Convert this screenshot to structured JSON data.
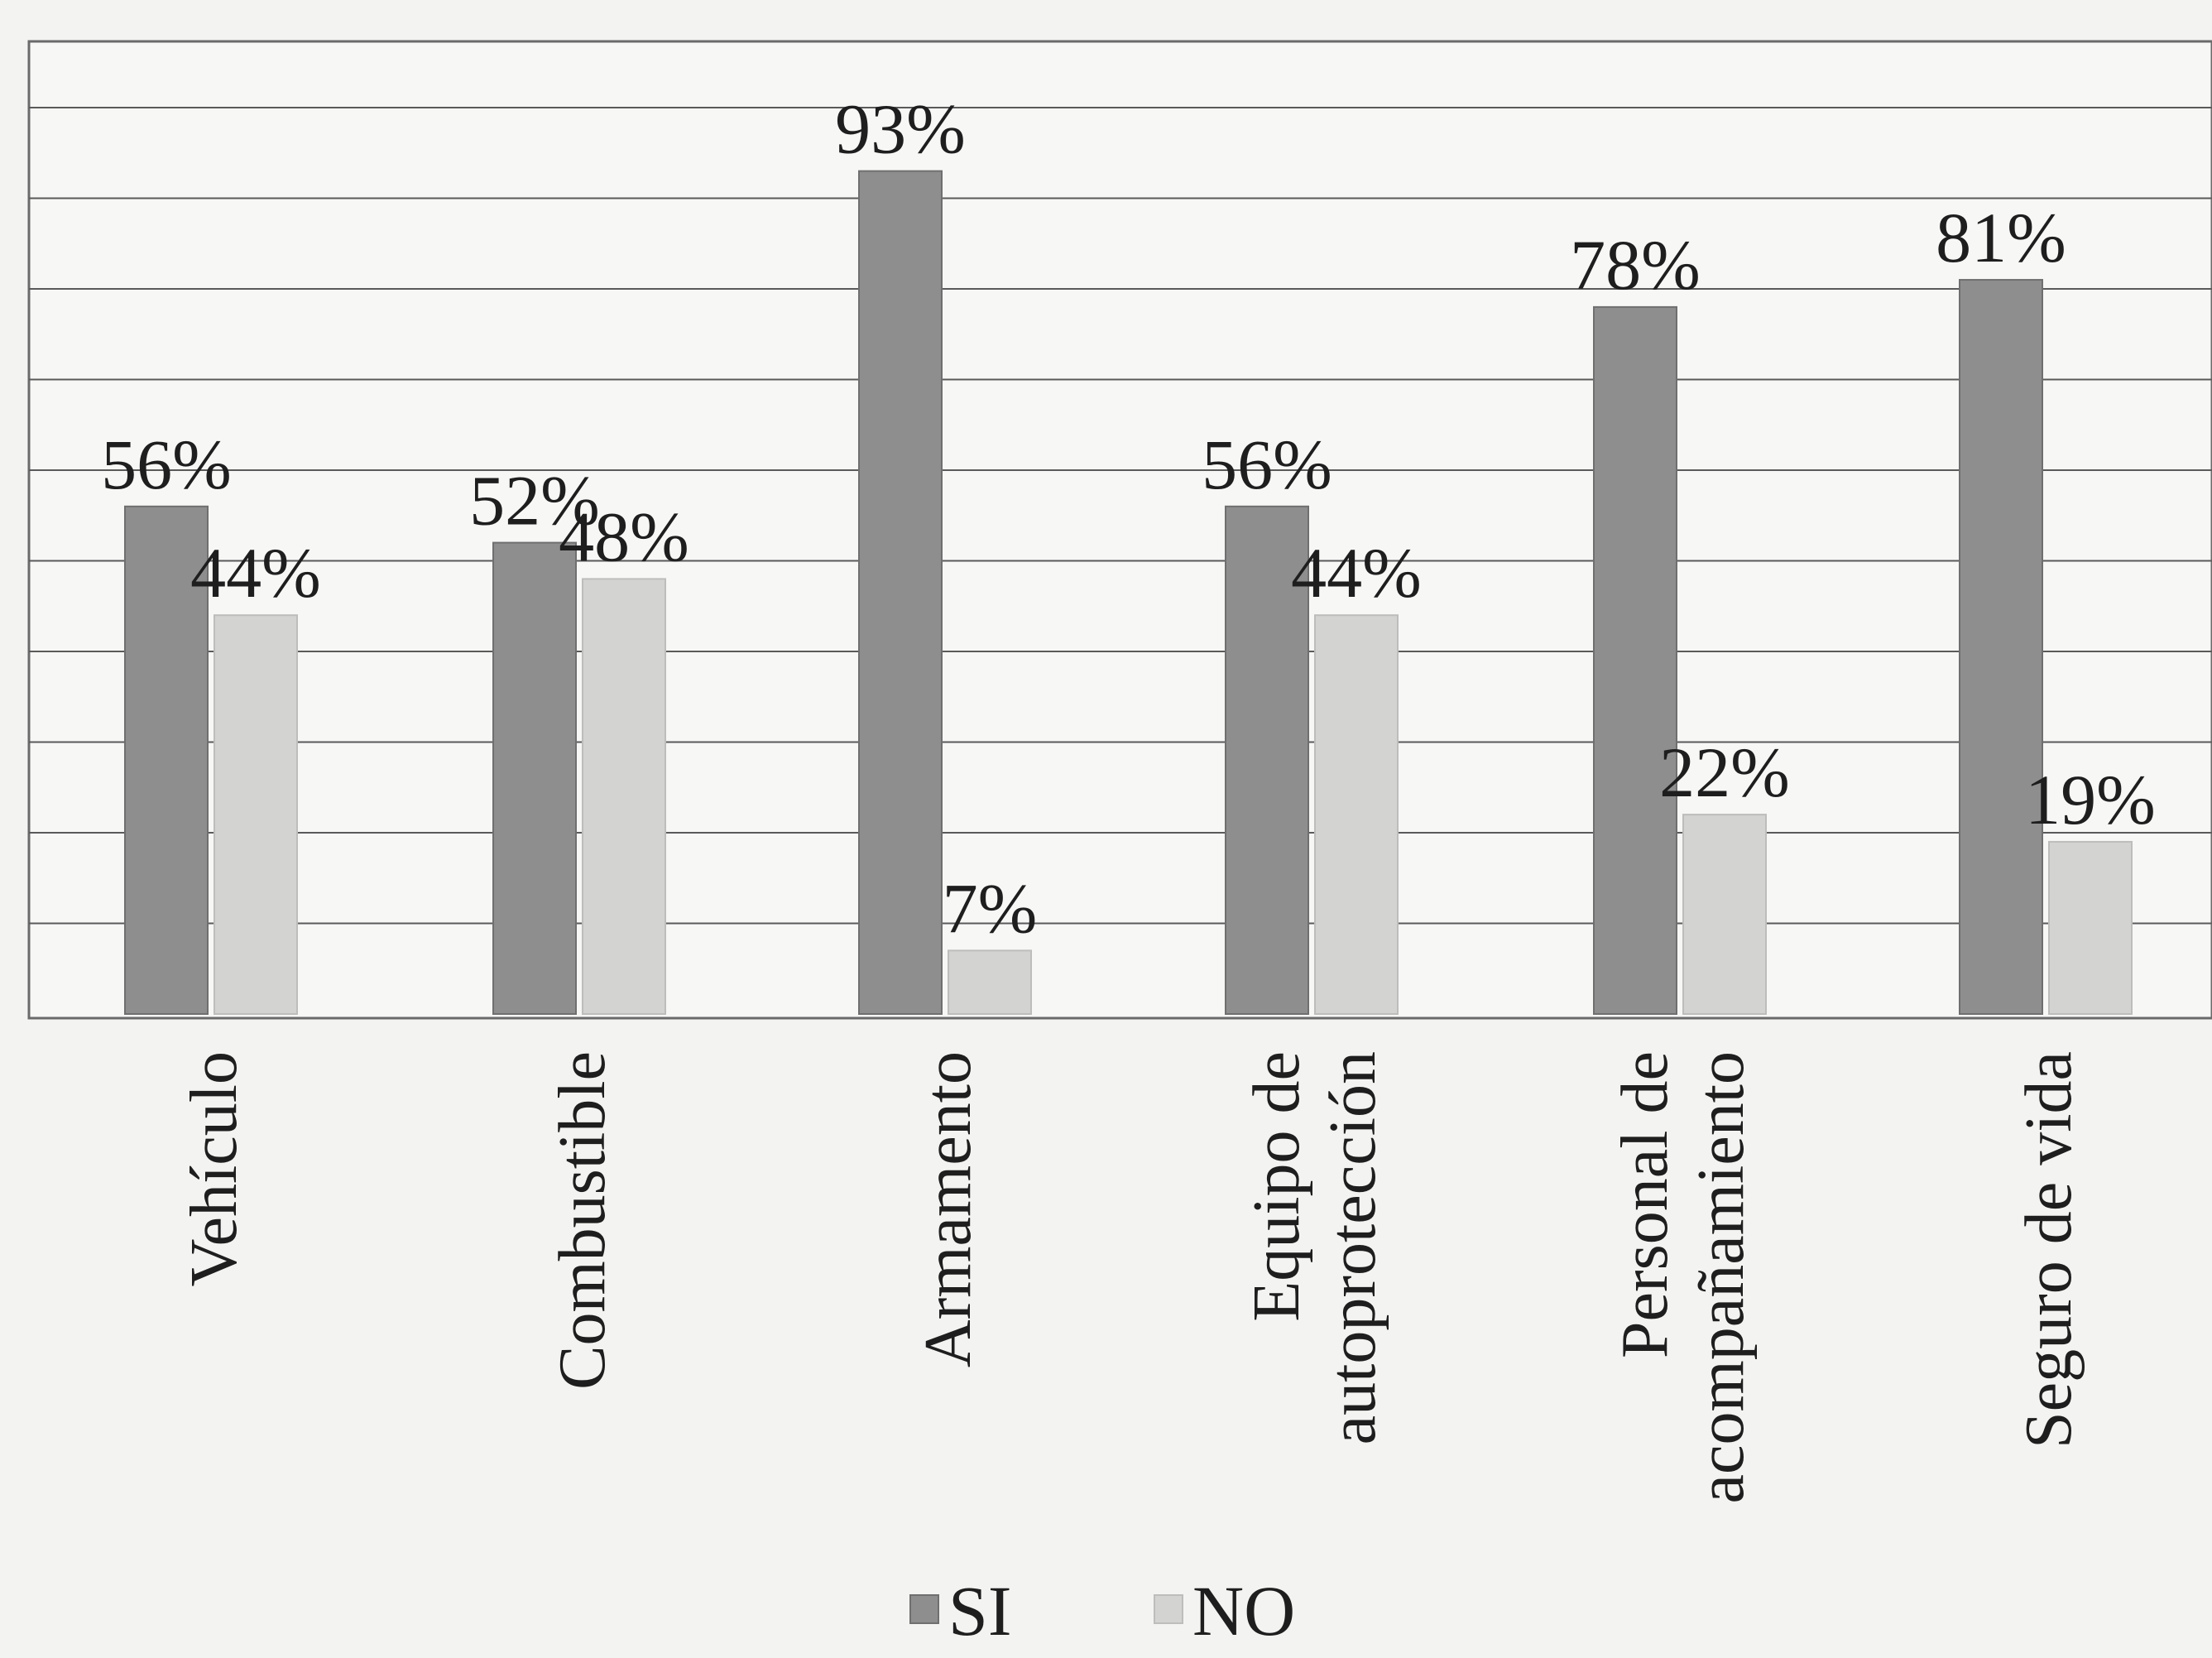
{
  "chart_data": {
    "type": "bar",
    "title": "",
    "xlabel": "",
    "ylabel": "",
    "ylim": [
      0,
      100
    ],
    "grid": true,
    "legend_position": "bottom",
    "categories": [
      [
        "Vehículo"
      ],
      [
        "Combustible"
      ],
      [
        "Armamento"
      ],
      [
        "Equipo de",
        "autoprotección"
      ],
      [
        "Personal de",
        "acompañamiento"
      ],
      [
        "Seguro de vida"
      ]
    ],
    "series": [
      {
        "name": "SI",
        "color": "#8e8e8e",
        "values": [
          56,
          52,
          93,
          56,
          78,
          81
        ],
        "labels": [
          "56%",
          "52%",
          "93%",
          "56%",
          "78%",
          "81%"
        ]
      },
      {
        "name": "NO",
        "color": "#d3d3d1",
        "values": [
          44,
          48,
          7,
          44,
          22,
          19
        ],
        "labels": [
          "44%",
          "48%",
          "7%",
          "44%",
          "22%",
          "19%"
        ]
      }
    ]
  }
}
